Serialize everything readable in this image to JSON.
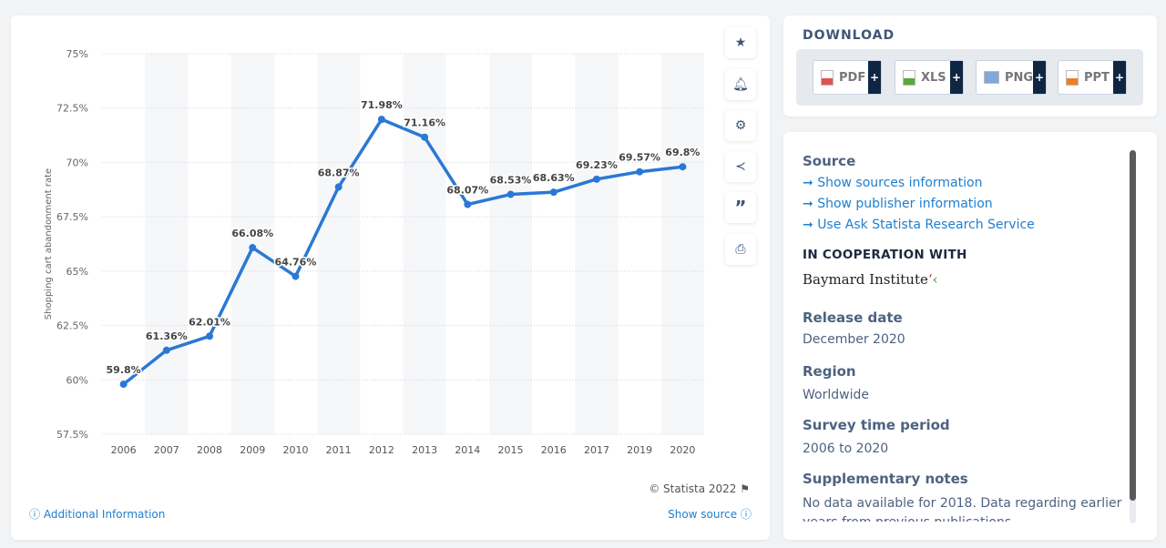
{
  "toolbar": {
    "icons": [
      "star-icon",
      "bell-icon",
      "gear-icon",
      "share-icon",
      "quote-icon",
      "print-icon"
    ]
  },
  "chart_footer": {
    "copyright": "© Statista 2022",
    "additional_info": "Additional Information",
    "show_source": "Show source"
  },
  "download": {
    "title": "DOWNLOAD",
    "buttons": [
      {
        "label": "PDF",
        "color": "#e05252"
      },
      {
        "label": "XLS",
        "color": "#5aa83a"
      },
      {
        "label": "PNG",
        "color": "#5b8fc9"
      },
      {
        "label": "PPT",
        "color": "#ef7d22"
      }
    ]
  },
  "info": {
    "source_title": "Source",
    "links": [
      "Show sources information",
      "Show publisher information",
      "Use Ask Statista Research Service"
    ],
    "cooperation_title": "IN COOPERATION WITH",
    "cooperation_logo": "Baymard Institute",
    "release_label": "Release date",
    "release_value": "December 2020",
    "region_label": "Region",
    "region_value": "Worldwide",
    "period_label": "Survey time period",
    "period_value": "2006 to 2020",
    "notes_label": "Supplementary notes",
    "notes_value": "No data available for 2018. Data regarding earlier years from previous publications."
  },
  "chart_data": {
    "type": "line",
    "ylabel": "Shopping cart abandonment rate",
    "xlabel": "",
    "categories": [
      "2006",
      "2007",
      "2008",
      "2009",
      "2010",
      "2011",
      "2012",
      "2013",
      "2014",
      "2015",
      "2016",
      "2017",
      "2019",
      "2020"
    ],
    "values": [
      59.8,
      61.36,
      62.01,
      66.08,
      64.76,
      68.87,
      71.98,
      71.16,
      68.07,
      68.53,
      68.63,
      69.23,
      69.57,
      69.8
    ],
    "data_labels": [
      "59.8%",
      "61.36%",
      "62.01%",
      "66.08%",
      "64.76%",
      "68.87%",
      "71.98%",
      "71.16%",
      "68.07%",
      "68.53%",
      "68.63%",
      "69.23%",
      "69.57%",
      "69.8%"
    ],
    "yticks": [
      "57.5%",
      "60%",
      "62.5%",
      "65%",
      "67.5%",
      "70%",
      "72.5%",
      "75%"
    ],
    "ylim": [
      57.5,
      75
    ],
    "grid": true,
    "color": "#2a78d6"
  }
}
